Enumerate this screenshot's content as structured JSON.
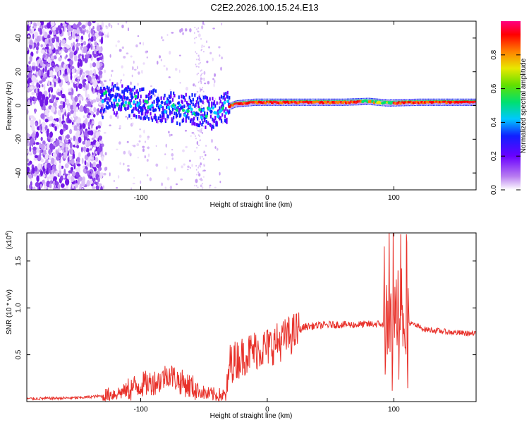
{
  "title": "C2E2.2026.100.15.24.E13",
  "chart_data": [
    {
      "type": "heatmap",
      "xlabel": "Height of straight line (km)",
      "ylabel": "Frequency (Hz)",
      "xlim": [
        -190,
        165
      ],
      "ylim": [
        -50,
        50
      ],
      "xticks": [
        -100,
        0,
        100
      ],
      "yticks": [
        -40,
        -20,
        0,
        20,
        40
      ],
      "colorbar": {
        "label": "Normalized spectral amplitude",
        "range": [
          0.0,
          1.0
        ],
        "ticks": [
          "0.0",
          "0.2",
          "0.4",
          "0.6",
          "0.8"
        ]
      },
      "ridge": [
        {
          "x": -130,
          "y": 5
        },
        {
          "x": -110,
          "y": 2
        },
        {
          "x": -90,
          "y": 0
        },
        {
          "x": -70,
          "y": -2
        },
        {
          "x": -55,
          "y": -3
        },
        {
          "x": -45,
          "y": -5
        },
        {
          "x": -35,
          "y": -2
        },
        {
          "x": -25,
          "y": 1
        },
        {
          "x": -10,
          "y": 2
        },
        {
          "x": 20,
          "y": 2
        },
        {
          "x": 60,
          "y": 2
        },
        {
          "x": 80,
          "y": 2.5
        },
        {
          "x": 95,
          "y": 1.5
        },
        {
          "x": 120,
          "y": 2
        },
        {
          "x": 165,
          "y": 2
        }
      ]
    },
    {
      "type": "line",
      "xlabel": "Height of straight line (km)",
      "ylabel": "SNR (10 * v/v)",
      "yscale_label": "(x10",
      "yscale_exp": "4",
      "ymultiplier": 10000,
      "xlim": [
        -190,
        165
      ],
      "ylim": [
        0,
        1.8
      ],
      "xticks": [
        -100,
        0,
        100
      ],
      "yticks": [
        "0.5",
        "1.0",
        "1.5"
      ],
      "color": "#e8312a",
      "series": [
        {
          "x": -190,
          "y": 0.03
        },
        {
          "x": -150,
          "y": 0.04
        },
        {
          "x": -130,
          "y": 0.06
        },
        {
          "x": -115,
          "y": 0.1
        },
        {
          "x": -100,
          "y": 0.18
        },
        {
          "x": -85,
          "y": 0.22
        },
        {
          "x": -78,
          "y": 0.3
        },
        {
          "x": -70,
          "y": 0.22
        },
        {
          "x": -60,
          "y": 0.16
        },
        {
          "x": -48,
          "y": 0.08
        },
        {
          "x": -32,
          "y": 0.06
        },
        {
          "x": -30,
          "y": 0.4
        },
        {
          "x": -20,
          "y": 0.48
        },
        {
          "x": -10,
          "y": 0.55
        },
        {
          "x": 0,
          "y": 0.58
        },
        {
          "x": 10,
          "y": 0.64
        },
        {
          "x": 20,
          "y": 0.72
        },
        {
          "x": 30,
          "y": 0.8
        },
        {
          "x": 50,
          "y": 0.82
        },
        {
          "x": 70,
          "y": 0.82
        },
        {
          "x": 90,
          "y": 0.83
        },
        {
          "x": 100,
          "y": 0.7
        },
        {
          "x": 105,
          "y": 1.2
        },
        {
          "x": 110,
          "y": 0.85
        },
        {
          "x": 125,
          "y": 0.77
        },
        {
          "x": 145,
          "y": 0.74
        },
        {
          "x": 165,
          "y": 0.72
        }
      ]
    }
  ]
}
